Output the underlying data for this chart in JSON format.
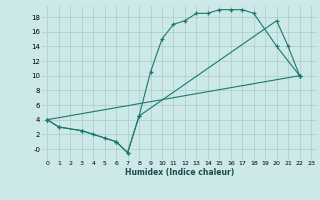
{
  "bg_color": "#cce8e8",
  "grid_color": "#aacccc",
  "line_color": "#1a7a6a",
  "xlabel": "Humidex (Indice chaleur)",
  "xlim": [
    -0.5,
    23.5
  ],
  "ylim": [
    -1.5,
    19.5
  ],
  "xticks": [
    0,
    1,
    2,
    3,
    4,
    5,
    6,
    7,
    8,
    9,
    10,
    11,
    12,
    13,
    14,
    15,
    16,
    17,
    18,
    19,
    20,
    21,
    22,
    23
  ],
  "yticks": [
    0,
    2,
    4,
    6,
    8,
    10,
    12,
    14,
    16,
    18
  ],
  "curve1_x": [
    0,
    1,
    3,
    6,
    7,
    8,
    9,
    10,
    11,
    12,
    13,
    14,
    15,
    16,
    17,
    18,
    20,
    22
  ],
  "curve1_y": [
    4,
    3,
    2.5,
    1,
    -0.5,
    4.5,
    10.5,
    15,
    17,
    17.5,
    18.5,
    18.5,
    19,
    19,
    19,
    18.5,
    14,
    10
  ],
  "curve2_x": [
    0,
    1,
    3,
    4,
    5,
    6,
    7,
    8,
    20,
    21,
    22
  ],
  "curve2_y": [
    4,
    3,
    2.5,
    2,
    1.5,
    1,
    -0.5,
    4.5,
    17.5,
    14,
    10
  ],
  "curve3_x": [
    0,
    22
  ],
  "curve3_y": [
    4,
    10
  ]
}
